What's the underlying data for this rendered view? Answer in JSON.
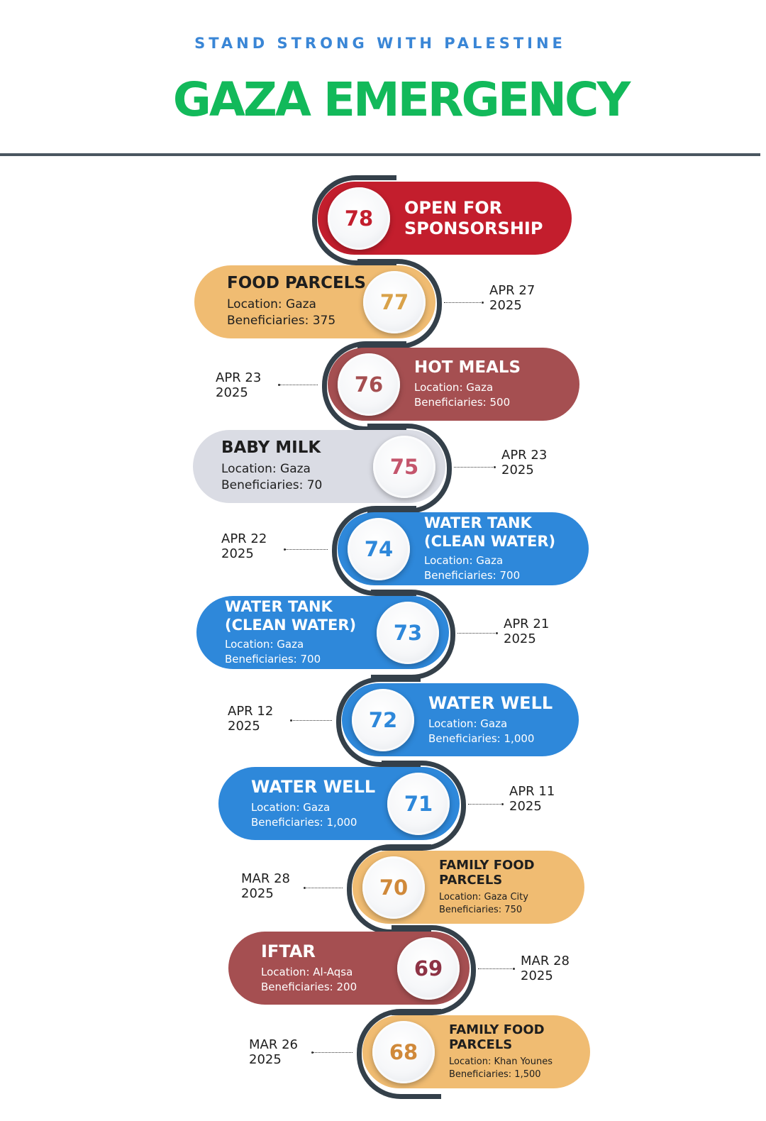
{
  "header": {
    "subtitle": "STAND STRONG WITH PALESTINE",
    "title": "GAZA EMERGENCY"
  },
  "colors": {
    "red": "#c31e2d",
    "orange": "#f0bc72",
    "maroon": "#a54f51",
    "gray": "#dadce4",
    "blue": "#2e88da",
    "arc": "#34404a",
    "title_green": "#12b95a",
    "subtitle_blue": "#3a86d6"
  },
  "items": [
    {
      "number": "78",
      "title": [
        "OPEN FOR",
        "SPONSORSHIP"
      ],
      "location": "",
      "beneficiaries": "",
      "date": [
        "",
        ""
      ],
      "color": "#c31e2d",
      "text_color": "#ffffff",
      "number_color": "#c31e2d"
    },
    {
      "number": "77",
      "title": [
        "FOOD PARCELS"
      ],
      "location": "Location:  Gaza",
      "beneficiaries": "Beneficiaries: 375",
      "date": [
        "APR 27",
        "2025"
      ],
      "color": "#f0bc72",
      "text_color": "#1e1e1e",
      "number_color": "#d9a24a"
    },
    {
      "number": "76",
      "title": [
        "HOT MEALS"
      ],
      "location": "Location: Gaza",
      "beneficiaries": "Beneficiaries: 500",
      "date": [
        "APR 23",
        "2025"
      ],
      "color": "#a54f51",
      "text_color": "#ffffff",
      "number_color": "#a54f51"
    },
    {
      "number": "75",
      "title": [
        "BABY MILK"
      ],
      "location": "Location: Gaza",
      "beneficiaries": "Beneficiaries: 70",
      "date": [
        "APR 23",
        "2025"
      ],
      "color": "#dadce4",
      "text_color": "#1e1e1e",
      "number_color": "#c4556c"
    },
    {
      "number": "74",
      "title": [
        "WATER TANK",
        "(CLEAN WATER)"
      ],
      "location": "Location: Gaza",
      "beneficiaries": "Beneficiaries: 700",
      "date": [
        "APR 22",
        "2025"
      ],
      "color": "#2e88da",
      "text_color": "#ffffff",
      "number_color": "#2e88da"
    },
    {
      "number": "73",
      "title": [
        "WATER TANK",
        "(CLEAN WATER)"
      ],
      "location": "Location: Gaza",
      "beneficiaries": "Beneficiaries: 700",
      "date": [
        "APR 21",
        "2025"
      ],
      "color": "#2e88da",
      "text_color": "#ffffff",
      "number_color": "#2e88da"
    },
    {
      "number": "72",
      "title": [
        "WATER WELL"
      ],
      "location": "Location: Gaza",
      "beneficiaries": "Beneficiaries: 1,000",
      "date": [
        "APR 12",
        "2025"
      ],
      "color": "#2e88da",
      "text_color": "#ffffff",
      "number_color": "#2e88da"
    },
    {
      "number": "71",
      "title": [
        "WATER WELL"
      ],
      "location": "Location: Gaza",
      "beneficiaries": "Beneficiaries: 1,000",
      "date": [
        "APR 11",
        "2025"
      ],
      "color": "#2e88da",
      "text_color": "#ffffff",
      "number_color": "#2e88da"
    },
    {
      "number": "70",
      "title": [
        "FAMILY FOOD",
        "PARCELS"
      ],
      "location": "Location: Gaza City",
      "beneficiaries": "Beneficiaries: 750",
      "date": [
        "MAR 28",
        "2025"
      ],
      "color": "#f0bc72",
      "text_color": "#1e1e1e",
      "number_color": "#d0893a"
    },
    {
      "number": "69",
      "title": [
        "IFTAR"
      ],
      "location": "Location: Al-Aqsa",
      "beneficiaries": "Beneficiaries: 200",
      "date": [
        "MAR 28",
        "2025"
      ],
      "color": "#a54f51",
      "text_color": "#ffffff",
      "number_color": "#8e3345"
    },
    {
      "number": "68",
      "title": [
        "FAMILY FOOD",
        "PARCELS"
      ],
      "location": "Location: Khan Younes",
      "beneficiaries": "Beneficiaries: 1,500",
      "date": [
        "MAR 26",
        "2025"
      ],
      "color": "#f0bc72",
      "text_color": "#1e1e1e",
      "number_color": "#d0893a"
    }
  ]
}
